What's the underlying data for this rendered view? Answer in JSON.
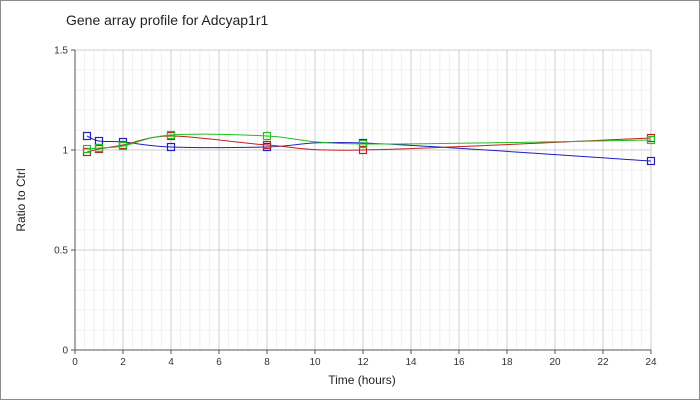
{
  "chart_data": {
    "type": "line",
    "title": "Gene array profile for Adcyap1r1",
    "xlabel": "Time (hours)",
    "ylabel": "Ratio to Ctrl",
    "xlim": [
      0,
      24
    ],
    "ylim": [
      0,
      1.5
    ],
    "xticks": [
      0,
      2,
      4,
      6,
      8,
      10,
      12,
      14,
      16,
      18,
      20,
      22,
      24
    ],
    "yticks": [
      0,
      0.5,
      1,
      1.5
    ],
    "ytick_labels": [
      "0",
      "0.5",
      "1",
      "1.5"
    ],
    "grid": true,
    "legend": "none",
    "series": [
      {
        "color": "#2020c0",
        "x": [
          0.5,
          1,
          2,
          4,
          8,
          12,
          24
        ],
        "y": [
          1.07,
          1.045,
          1.04,
          1.015,
          1.015,
          1.035,
          0.945
        ]
      },
      {
        "color": "#c02020",
        "x": [
          0.5,
          1,
          2,
          4,
          8,
          12,
          24
        ],
        "y": [
          0.99,
          1.005,
          1.025,
          1.07,
          1.025,
          1.0,
          1.06
        ]
      },
      {
        "color": "#20c020",
        "x": [
          0.5,
          1,
          2,
          4,
          8,
          12,
          24
        ],
        "y": [
          1.005,
          1.01,
          1.02,
          1.075,
          1.07,
          1.03,
          1.05
        ]
      }
    ]
  }
}
